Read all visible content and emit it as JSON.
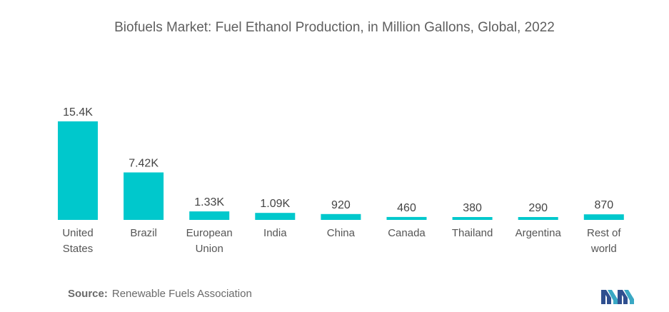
{
  "chart_data": {
    "type": "bar",
    "title": "Biofuels Market: Fuel Ethanol Production, in Million Gallons, Global, 2022",
    "categories": [
      "United States",
      "Brazil",
      "European Union",
      "India",
      "China",
      "Canada",
      "Thailand",
      "Argentina",
      "Rest of world"
    ],
    "category_lines": [
      [
        "United",
        "States"
      ],
      [
        "Brazil"
      ],
      [
        "European",
        "Union"
      ],
      [
        "India"
      ],
      [
        "China"
      ],
      [
        "Canada"
      ],
      [
        "Thailand"
      ],
      [
        "Argentina"
      ],
      [
        "Rest of",
        "world"
      ]
    ],
    "values": [
      15400,
      7420,
      1330,
      1090,
      920,
      460,
      380,
      290,
      870
    ],
    "data_labels": [
      "15.4K",
      "7.42K",
      "1.33K",
      "1.09K",
      "920",
      "460",
      "380",
      "290",
      "870"
    ],
    "xlabel": "",
    "ylabel": "",
    "ylim": [
      0,
      15400
    ],
    "grid": false,
    "legend": "none",
    "bar_color": "#00c8cc"
  },
  "source": {
    "label": "Source:",
    "text": "Renewable Fuels Association"
  },
  "logo": {
    "icon": "mordor-intelligence-logo-icon",
    "color": "#3aa8c4"
  }
}
